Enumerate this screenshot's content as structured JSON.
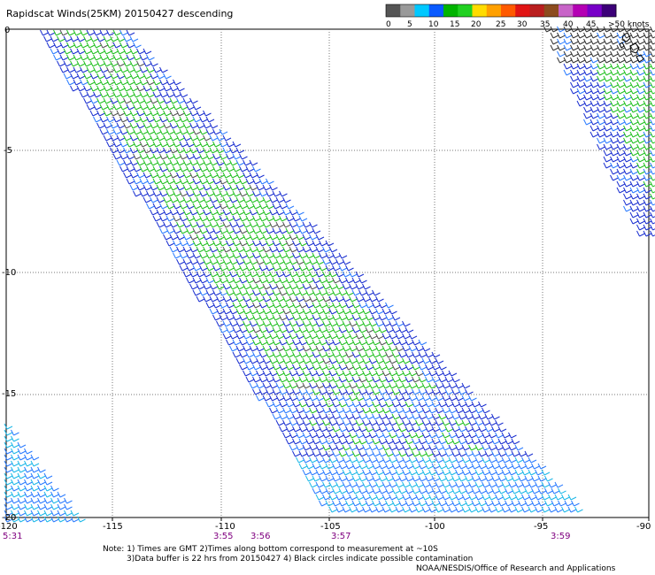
{
  "title": "Rapidscat Winds(25KM) 20150427 descending",
  "scale": {
    "labels": [
      "0",
      "5",
      "10",
      "15",
      "20",
      "25",
      "30",
      "35",
      "40",
      "45",
      ">50 knots"
    ],
    "colors": [
      "#555555",
      "#9a9a9a",
      "#00c8ff",
      "#0a5aff",
      "#00b400",
      "#21d121",
      "#ffdc00",
      "#ffa000",
      "#ff5a00",
      "#e11414",
      "#b91e1e",
      "#8c4b1e",
      "#c864c8",
      "#b400b4",
      "#7800c8",
      "#3c0078"
    ]
  },
  "map": {
    "lon_labels": [
      "-120",
      "-115",
      "-110",
      "-105",
      "-100",
      "-95",
      "-90"
    ],
    "lat_labels": [
      "0",
      "-5",
      "-10",
      "-15",
      "-20"
    ],
    "times": [
      "5:31",
      "3:55",
      "3:56",
      "3:57",
      "3:59"
    ],
    "time_color": "#800080"
  },
  "notes": {
    "line1": "Note: 1) Times are GMT 2)Times along bottom correspond to measurement at ~10S",
    "line2": "3)Data buffer is 22 hrs from 20150427 4) Black circles indicate possible contamination",
    "credit": "NOAA/NESDIS/Office of Research and Applications"
  }
}
